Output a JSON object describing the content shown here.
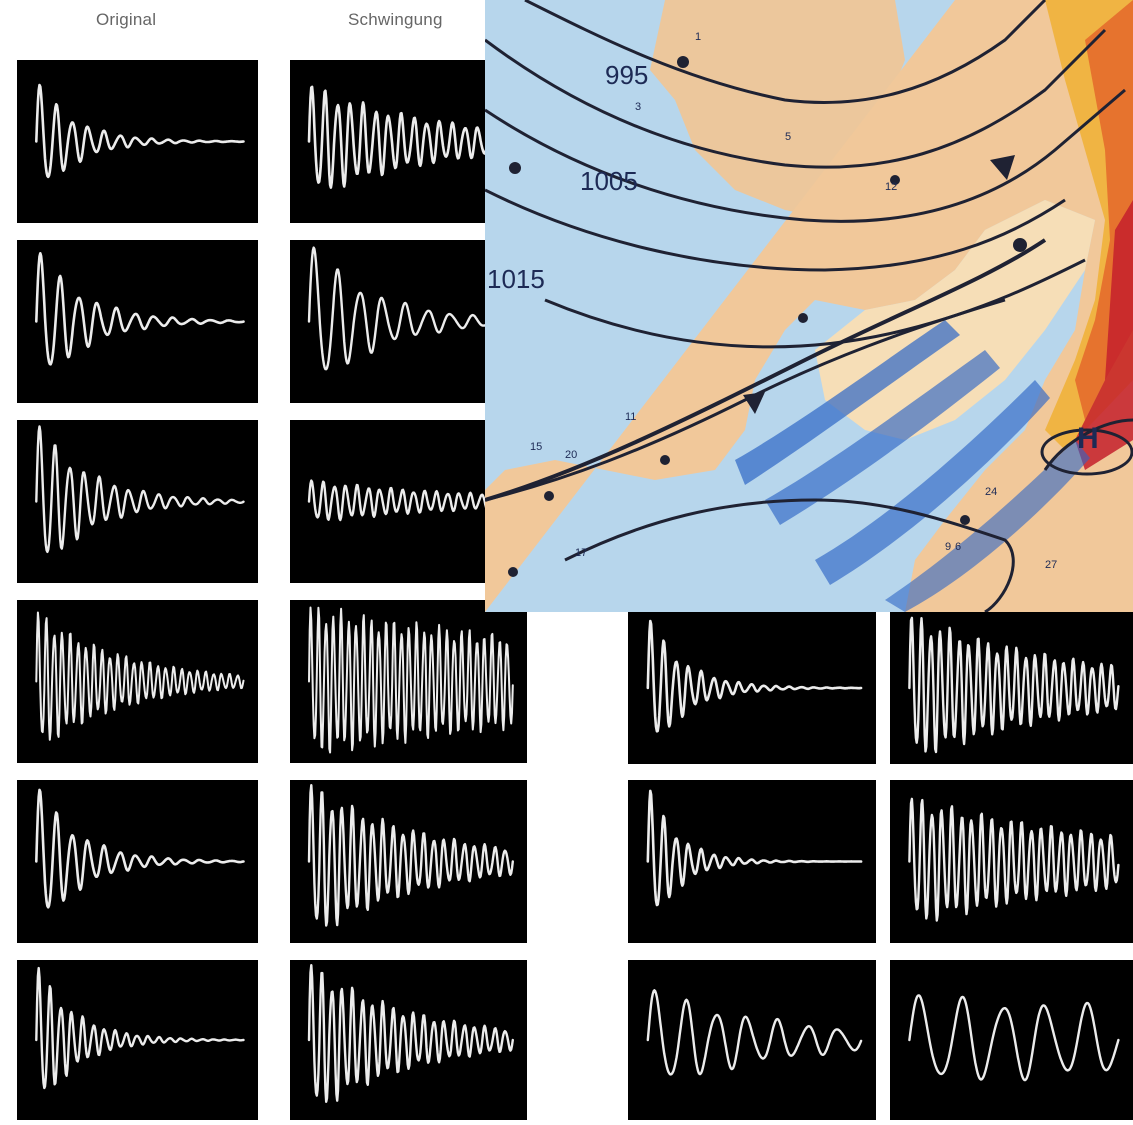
{
  "headers": {
    "original": "Original",
    "schwingung": "Schwingung"
  },
  "colors": {
    "panel_bg": "#000000",
    "trace": "#ececec",
    "sea": "#b7d6ec",
    "land": "#f1c89a",
    "isobar": "#1f2233",
    "front_cold": "#2a5fb8",
    "front_warm": "#d8542b"
  },
  "map": {
    "isobar_labels": [
      "995",
      "1005",
      "1015"
    ],
    "high_label": "H",
    "station_labels": [
      "1",
      "3",
      "5",
      "6",
      "9",
      "11",
      "12",
      "15",
      "17",
      "20",
      "24",
      "27"
    ]
  },
  "panels": [
    {
      "id": "o1",
      "wave": {
        "type": "damped",
        "f": 13,
        "d": 5.5,
        "a": 0.35,
        "lw": 2.6
      }
    },
    {
      "id": "s1",
      "wave": {
        "type": "damped",
        "f": 16,
        "d": 1.6,
        "a": 0.32,
        "lw": 2.6
      }
    },
    {
      "id": "o2",
      "wave": {
        "type": "damped",
        "f": 11,
        "d": 4.5,
        "a": 0.42,
        "lw": 2.6
      }
    },
    {
      "id": "s2",
      "wave": {
        "type": "damped",
        "f": 9,
        "d": 3.2,
        "a": 0.45,
        "lw": 2.4
      }
    },
    {
      "id": "o3",
      "wave": {
        "type": "damped",
        "f": 14,
        "d": 4.0,
        "a": 0.45,
        "lw": 2.4
      }
    },
    {
      "id": "s3",
      "wave": {
        "type": "damped",
        "f": 18,
        "d": 1.2,
        "a": 0.12,
        "lw": 2.4
      }
    },
    {
      "id": "o4",
      "wave": {
        "type": "damped",
        "f": 26,
        "d": 2.4,
        "a": 0.4,
        "lw": 2.0
      }
    },
    {
      "id": "s4",
      "wave": {
        "type": "damped",
        "f": 27,
        "d": 0.5,
        "a": 0.42,
        "lw": 2.0
      }
    },
    {
      "id": "o5",
      "wave": {
        "type": "damped",
        "f": 13,
        "d": 5.0,
        "a": 0.44,
        "lw": 2.6
      }
    },
    {
      "id": "s5",
      "wave": {
        "type": "damped",
        "f": 20,
        "d": 1.8,
        "a": 0.44,
        "lw": 2.4
      }
    },
    {
      "id": "o6",
      "wave": {
        "type": "damped",
        "f": 19,
        "d": 5.5,
        "a": 0.44,
        "lw": 2.4
      }
    },
    {
      "id": "s6",
      "wave": {
        "type": "damped",
        "f": 20,
        "d": 2.0,
        "a": 0.44,
        "lw": 2.4
      }
    },
    {
      "id": "r1",
      "wave": {
        "type": "damped",
        "f": 17,
        "d": 6.0,
        "a": 0.44,
        "lw": 2.6
      }
    },
    {
      "id": "r2",
      "wave": {
        "type": "damped",
        "f": 22,
        "d": 1.2,
        "a": 0.44,
        "lw": 2.4
      }
    },
    {
      "id": "r3",
      "wave": {
        "type": "damped",
        "f": 17,
        "d": 7.5,
        "a": 0.44,
        "lw": 2.6
      }
    },
    {
      "id": "r4",
      "wave": {
        "type": "damped",
        "f": 21,
        "d": 0.9,
        "a": 0.36,
        "lw": 2.4
      }
    },
    {
      "id": "r5",
      "wave": {
        "type": "damped",
        "f": 7,
        "d": 1.6,
        "a": 0.3,
        "lw": 2.4
      }
    },
    {
      "id": "r6",
      "wave": {
        "type": "damped",
        "f": 5,
        "d": 0.3,
        "a": 0.26,
        "lw": 2.4
      }
    }
  ]
}
